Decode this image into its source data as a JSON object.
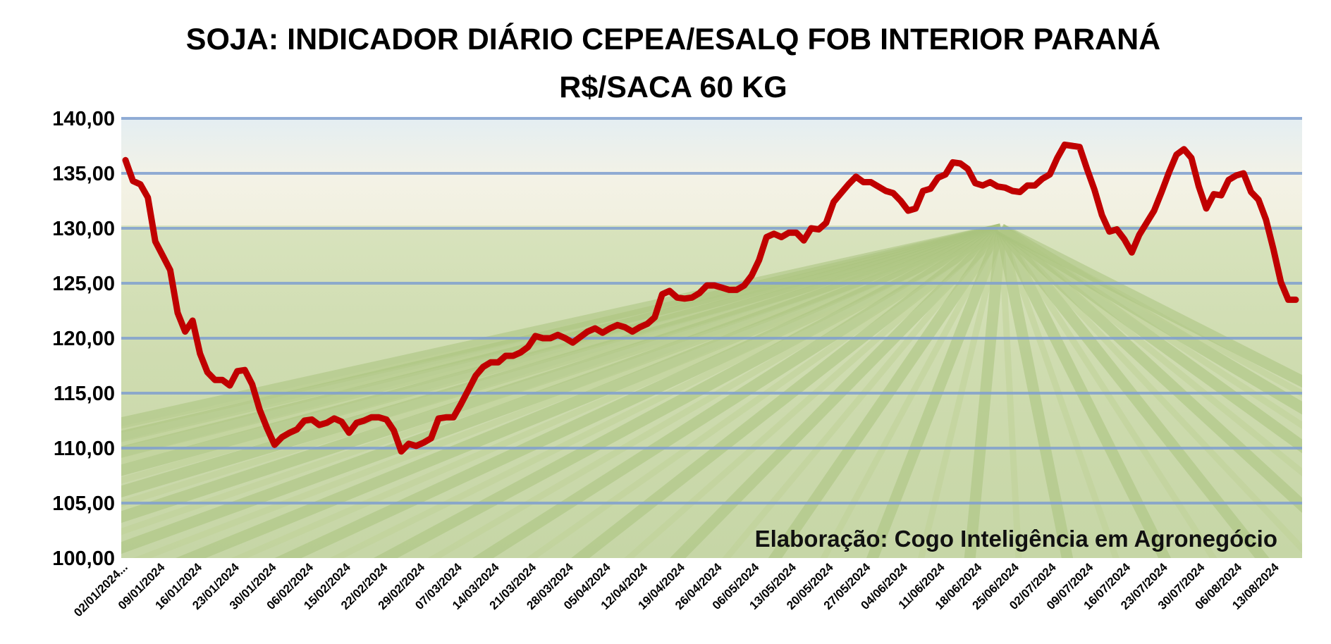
{
  "chart_data": {
    "type": "line",
    "title": "SOJA: INDICADOR DIÁRIO CEPEA/ESALQ FOB INTERIOR PARANÁ",
    "subtitle": "R$/SACA 60 KG",
    "annotation": "Elaboração: Cogo Inteligência em Agronegócio",
    "xlabel": "",
    "ylabel": "",
    "ylim": [
      100,
      140
    ],
    "yticks": [
      "100,00",
      "105,00",
      "110,00",
      "115,00",
      "120,00",
      "125,00",
      "130,00",
      "135,00",
      "140,00"
    ],
    "xticks": [
      "02/01/2024...",
      "09/01/2024",
      "16/01/2024",
      "23/01/2024",
      "30/01/2024",
      "06/02/2024",
      "15/02/2024",
      "22/02/2024",
      "29/02/2024",
      "07/03/2024",
      "14/03/2024",
      "21/03/2024",
      "28/03/2024",
      "05/04/2024",
      "12/04/2024",
      "19/04/2024",
      "26/04/2024",
      "06/05/2024",
      "13/05/2024",
      "20/05/2024",
      "27/05/2024",
      "04/06/2024",
      "11/06/2024",
      "18/06/2024",
      "25/06/2024",
      "02/07/2024",
      "09/07/2024",
      "16/07/2024",
      "23/07/2024",
      "30/07/2024",
      "06/08/2024",
      "13/08/2024"
    ],
    "grid": true,
    "legend": "none",
    "line_color": "#c00000",
    "grid_color": "#7f9fcf",
    "values": [
      136.2,
      134.3,
      134.0,
      132.8,
      128.8,
      127.5,
      126.2,
      122.3,
      120.6,
      121.6,
      118.6,
      116.9,
      116.2,
      116.2,
      115.7,
      117.0,
      117.1,
      115.8,
      113.5,
      111.8,
      110.3,
      111.0,
      111.4,
      111.7,
      112.5,
      112.6,
      112.1,
      112.3,
      112.7,
      112.4,
      111.4,
      112.3,
      112.5,
      112.8,
      112.8,
      112.6,
      111.6,
      109.7,
      110.4,
      110.2,
      110.5,
      110.9,
      112.7,
      112.8,
      112.8,
      114.0,
      115.3,
      116.6,
      117.4,
      117.8,
      117.8,
      118.4,
      118.4,
      118.7,
      119.2,
      120.2,
      120.0,
      120.0,
      120.3,
      120.0,
      119.6,
      120.1,
      120.6,
      120.9,
      120.5,
      120.9,
      121.2,
      121.0,
      120.6,
      121.0,
      121.3,
      121.9,
      124.0,
      124.3,
      123.7,
      123.6,
      123.7,
      124.1,
      124.8,
      124.8,
      124.6,
      124.4,
      124.4,
      124.8,
      125.7,
      127.1,
      129.2,
      129.5,
      129.2,
      129.6,
      129.6,
      128.9,
      130.0,
      129.9,
      130.5,
      132.4,
      133.2,
      134.0,
      134.7,
      134.2,
      134.2,
      133.8,
      133.4,
      133.2,
      132.5,
      131.6,
      131.8,
      133.4,
      133.6,
      134.6,
      134.9,
      136.0,
      135.9,
      135.4,
      134.1,
      133.9,
      134.2,
      133.8,
      133.7,
      133.4,
      133.3,
      133.9,
      133.9,
      134.5,
      134.9,
      136.4,
      137.6,
      137.5,
      137.4,
      135.4,
      133.5,
      131.2,
      129.7,
      129.9,
      129.0,
      127.8,
      129.4,
      130.5,
      131.6,
      133.3,
      135.1,
      136.7,
      137.2,
      136.4,
      133.8,
      131.8,
      133.1,
      133.0,
      134.4,
      134.8,
      135.0,
      133.3,
      132.6,
      130.8,
      128.1,
      125.1,
      123.5,
      123.5
    ]
  }
}
